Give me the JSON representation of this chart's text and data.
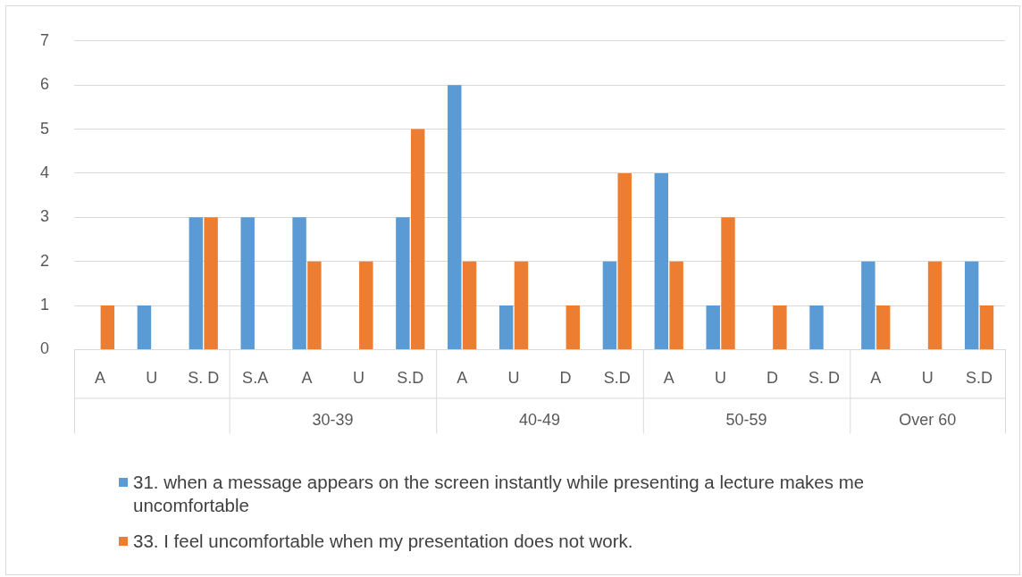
{
  "chart_data": {
    "type": "bar",
    "categories": [
      "A",
      "U",
      "S. D",
      "S.A",
      "A",
      "U",
      "S.D",
      "A",
      "U",
      "D",
      "S.D",
      "A",
      "U",
      "D",
      "S. D",
      "A",
      "U",
      "S.D"
    ],
    "series": [
      {
        "name": "31. when a message appears on the screen instantly while presenting a lecture makes me uncomfortable",
        "color": "#5b9bd5",
        "values": [
          0,
          1,
          3,
          3,
          3,
          0,
          3,
          6,
          1,
          0,
          2,
          4,
          1,
          0,
          1,
          2,
          0,
          2
        ]
      },
      {
        "name": "33. I feel uncomfortable when my presentation does not work.",
        "color": "#ed7d31",
        "values": [
          1,
          0,
          3,
          0,
          2,
          2,
          5,
          2,
          2,
          1,
          4,
          2,
          3,
          1,
          0,
          1,
          2,
          1
        ]
      }
    ],
    "annotations": [
      "30-39",
      "40-49",
      "50-59",
      "Over 60"
    ],
    "ylim": [
      0,
      7
    ],
    "yticks": [
      0,
      1,
      2,
      3,
      4,
      5,
      6,
      7
    ],
    "grid": "y",
    "legend": "bottom"
  }
}
